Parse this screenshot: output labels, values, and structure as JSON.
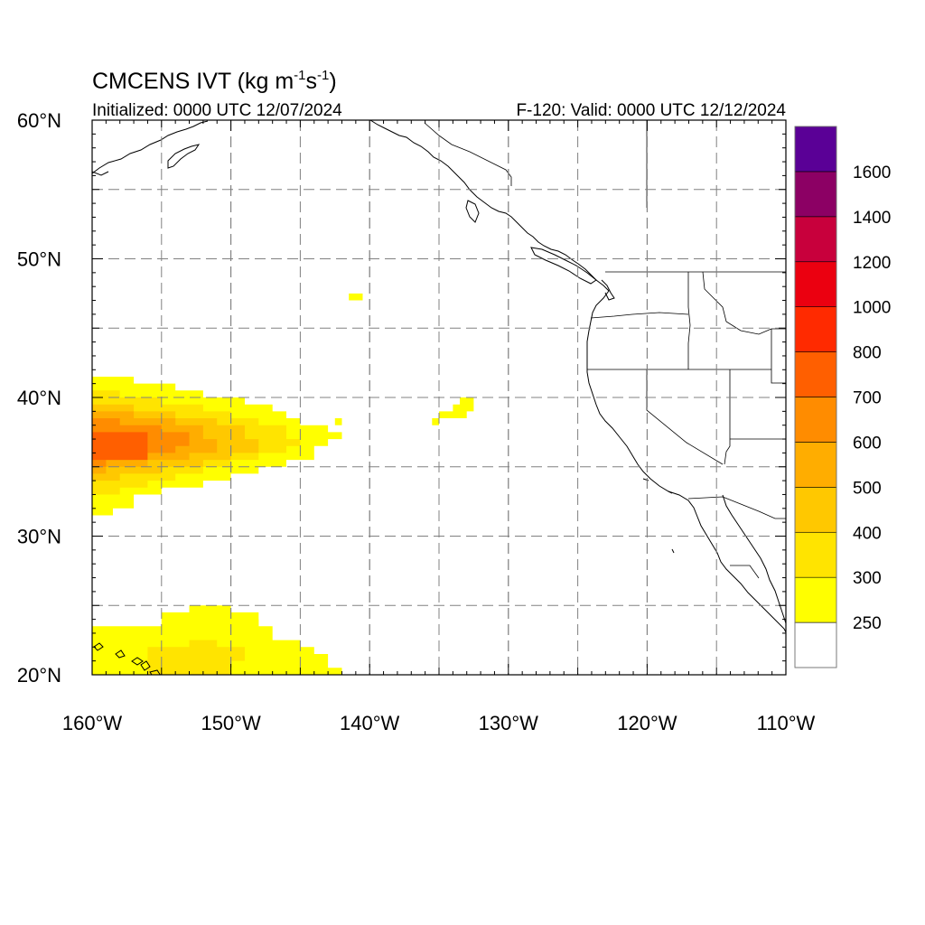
{
  "title": {
    "main": "CMCENS IVT (kg m",
    "sup1": "-1",
    "mid": "s",
    "sup2": "-1",
    "end": ")"
  },
  "subtitle_left": "Initialized: 0000 UTC 12/07/2024",
  "subtitle_right": "F-120: Valid: 0000 UTC 12/12/2024",
  "map": {
    "lon_range": [
      -160,
      -110
    ],
    "lat_range": [
      20,
      60
    ],
    "lon_ticks": [
      {
        "value": -160,
        "label": "160°W"
      },
      {
        "value": -150,
        "label": "150°W"
      },
      {
        "value": -140,
        "label": "140°W"
      },
      {
        "value": -130,
        "label": "130°W"
      },
      {
        "value": -120,
        "label": "120°W"
      },
      {
        "value": -110,
        "label": "110°W"
      }
    ],
    "lat_ticks": [
      {
        "value": 60,
        "label": "60°N"
      },
      {
        "value": 50,
        "label": "50°N"
      },
      {
        "value": 40,
        "label": "40°N"
      },
      {
        "value": 30,
        "label": "30°N"
      },
      {
        "value": 20,
        "label": "20°N"
      }
    ],
    "grid_lons": [
      -155,
      -150,
      -145,
      -140,
      -135,
      -130,
      -125,
      -120,
      -115
    ],
    "grid_lats": [
      25,
      30,
      35,
      40,
      45,
      50,
      55
    ]
  },
  "colorbar": {
    "colors": [
      "#ffffff",
      "#ffff00",
      "#ffe400",
      "#ffc800",
      "#ffad00",
      "#ff8c00",
      "#ff5f00",
      "#ff2a00",
      "#eb0010",
      "#c8003c",
      "#8c0064",
      "#5a0096"
    ],
    "labels": [
      "250",
      "300",
      "400",
      "500",
      "600",
      "700",
      "800",
      "1000",
      "1200",
      "1400",
      "1600"
    ]
  },
  "ivt_regions": [
    {
      "level": 1,
      "cells": [
        [
          -160,
          31.5
        ],
        [
          -160,
          41.5
        ],
        [
          -157,
          41.5
        ],
        [
          -157,
          41
        ],
        [
          -154,
          41
        ],
        [
          -154,
          40.5
        ],
        [
          -152,
          40.5
        ],
        [
          -152,
          40
        ],
        [
          -149,
          40
        ],
        [
          -149,
          39.5
        ],
        [
          -147,
          39.5
        ],
        [
          -147,
          39
        ],
        [
          -146,
          39
        ],
        [
          -146,
          38.5
        ],
        [
          -145,
          38.5
        ],
        [
          -145,
          38
        ],
        [
          -143,
          38
        ],
        [
          -143,
          37.5
        ],
        [
          -142,
          37.5
        ],
        [
          -142,
          37
        ],
        [
          -143,
          37
        ],
        [
          -143,
          36.5
        ],
        [
          -144,
          36.5
        ],
        [
          -144,
          35.5
        ],
        [
          -146,
          35.5
        ],
        [
          -146,
          35
        ],
        [
          -148,
          35
        ],
        [
          -148,
          34.5
        ],
        [
          -150,
          34.5
        ],
        [
          -150,
          34
        ],
        [
          -152,
          34
        ],
        [
          -152,
          33.5
        ],
        [
          -155,
          33.5
        ],
        [
          -155,
          33
        ],
        [
          -157,
          33
        ],
        [
          -157,
          32
        ],
        [
          -158.5,
          32
        ],
        [
          -158.5,
          31.5
        ]
      ]
    },
    {
      "level": 2,
      "cells": [
        [
          -160,
          33
        ],
        [
          -160,
          40.5
        ],
        [
          -158,
          40.5
        ],
        [
          -158,
          40
        ],
        [
          -155,
          40
        ],
        [
          -155,
          39.5
        ],
        [
          -152,
          39.5
        ],
        [
          -152,
          39
        ],
        [
          -150,
          39
        ],
        [
          -150,
          38.5
        ],
        [
          -148,
          38.5
        ],
        [
          -148,
          38
        ],
        [
          -146,
          38
        ],
        [
          -146,
          37
        ],
        [
          -145,
          37
        ],
        [
          -145,
          36.5
        ],
        [
          -146,
          36.5
        ],
        [
          -146,
          36
        ],
        [
          -148,
          36
        ],
        [
          -148,
          35.5
        ],
        [
          -150,
          35.5
        ],
        [
          -150,
          35
        ],
        [
          -152,
          35
        ],
        [
          -152,
          34.5
        ],
        [
          -154,
          34.5
        ],
        [
          -154,
          34
        ],
        [
          -156,
          34
        ],
        [
          -156,
          33.5
        ],
        [
          -158,
          33.5
        ],
        [
          -158,
          33
        ]
      ]
    },
    {
      "level": 3,
      "cells": [
        [
          -160,
          34
        ],
        [
          -160,
          39.5
        ],
        [
          -157,
          39.5
        ],
        [
          -157,
          39
        ],
        [
          -154,
          39
        ],
        [
          -154,
          38.5
        ],
        [
          -151,
          38.5
        ],
        [
          -151,
          38
        ],
        [
          -149,
          38
        ],
        [
          -149,
          37
        ],
        [
          -148,
          37
        ],
        [
          -148,
          36
        ],
        [
          -150,
          36
        ],
        [
          -150,
          35.5
        ],
        [
          -152,
          35.5
        ],
        [
          -152,
          35
        ],
        [
          -155,
          35
        ],
        [
          -155,
          34.5
        ],
        [
          -158,
          34.5
        ],
        [
          -158,
          34
        ]
      ]
    },
    {
      "level": 4,
      "cells": [
        [
          -160,
          34.5
        ],
        [
          -160,
          39
        ],
        [
          -157,
          39
        ],
        [
          -157,
          38.5
        ],
        [
          -154,
          38.5
        ],
        [
          -154,
          38
        ],
        [
          -152,
          38
        ],
        [
          -152,
          37
        ],
        [
          -151,
          37
        ],
        [
          -151,
          36
        ],
        [
          -153,
          36
        ],
        [
          -153,
          35.5
        ],
        [
          -156,
          35.5
        ],
        [
          -156,
          35
        ],
        [
          -159,
          35
        ],
        [
          -159,
          34.5
        ]
      ]
    },
    {
      "level": 5,
      "cells": [
        [
          -160,
          35
        ],
        [
          -160,
          38.5
        ],
        [
          -158,
          38.5
        ],
        [
          -158,
          38
        ],
        [
          -155,
          38
        ],
        [
          -155,
          37.5
        ],
        [
          -153,
          37.5
        ],
        [
          -153,
          36.5
        ],
        [
          -154,
          36.5
        ],
        [
          -154,
          36
        ],
        [
          -157,
          36
        ],
        [
          -157,
          35.5
        ],
        [
          -159,
          35.5
        ],
        [
          -159,
          35
        ]
      ]
    },
    {
      "level": 6,
      "cells": [
        [
          -160,
          35.5
        ],
        [
          -160,
          37.5
        ],
        [
          -156,
          37.5
        ],
        [
          -156,
          35.5
        ]
      ]
    },
    {
      "level": 1,
      "cells": [
        [
          -142.5,
          38
        ],
        [
          -142.5,
          38.5
        ],
        [
          -142,
          38.5
        ],
        [
          -142,
          38
        ]
      ]
    },
    {
      "level": 1,
      "cells": [
        [
          -141.5,
          47
        ],
        [
          -141.5,
          47.5
        ],
        [
          -140.5,
          47.5
        ],
        [
          -140.5,
          47
        ]
      ]
    },
    {
      "level": 1,
      "cells": [
        [
          -135.5,
          38
        ],
        [
          -135.5,
          38.5
        ],
        [
          -135,
          38.5
        ],
        [
          -135,
          39
        ],
        [
          -134,
          39
        ],
        [
          -134,
          39.5
        ],
        [
          -133.5,
          39.5
        ],
        [
          -133.5,
          40
        ],
        [
          -132.5,
          40
        ],
        [
          -132.5,
          39
        ],
        [
          -133,
          39
        ],
        [
          -133,
          38.5
        ],
        [
          -135,
          38.5
        ],
        [
          -135,
          38
        ]
      ]
    },
    {
      "level": 1,
      "cells": [
        [
          -160,
          20
        ],
        [
          -160,
          23.5
        ],
        [
          -155,
          23.5
        ],
        [
          -155,
          24.5
        ],
        [
          -153,
          24.5
        ],
        [
          -153,
          25
        ],
        [
          -150,
          25
        ],
        [
          -150,
          24.5
        ],
        [
          -148,
          24.5
        ],
        [
          -148,
          23.5
        ],
        [
          -147,
          23.5
        ],
        [
          -147,
          22.5
        ],
        [
          -145,
          22.5
        ],
        [
          -145,
          22
        ],
        [
          -144,
          22
        ],
        [
          -144,
          21.5
        ],
        [
          -143,
          21.5
        ],
        [
          -143,
          20.5
        ],
        [
          -142,
          20.5
        ],
        [
          -142,
          20
        ]
      ]
    },
    {
      "level": 2,
      "cells": [
        [
          -156,
          20
        ],
        [
          -156,
          22
        ],
        [
          -153,
          22
        ],
        [
          -153,
          22.5
        ],
        [
          -151,
          22.5
        ],
        [
          -151,
          22
        ],
        [
          -149,
          22
        ],
        [
          -149,
          21
        ],
        [
          -150,
          21
        ],
        [
          -150,
          20
        ]
      ]
    },
    {
      "level": 1,
      "cells": [
        [
          -148.5,
          23.5
        ],
        [
          -148.5,
          24
        ],
        [
          -148,
          24
        ],
        [
          -148,
          23.5
        ]
      ]
    }
  ]
}
